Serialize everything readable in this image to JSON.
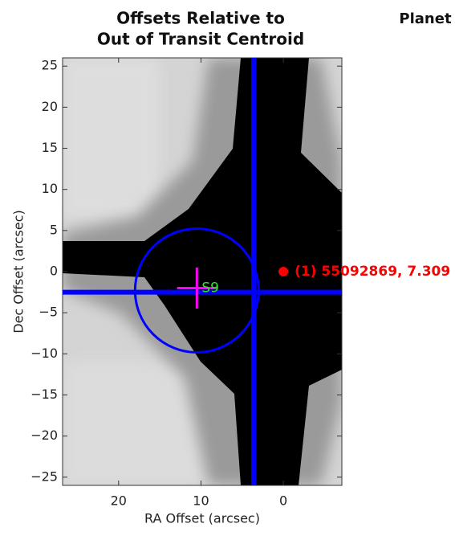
{
  "chart_data": {
    "type": "centroid-offsets",
    "title": [
      "Offsets Relative to",
      "Out of Transit Centroid"
    ],
    "annotation": "Planet",
    "x_label": "RA Offset (arcsec)",
    "y_label": "Dec Offset (arcsec)",
    "xlim": [
      26.8,
      -7.1
    ],
    "ylim": [
      -26,
      26
    ],
    "xticks": [
      20,
      10,
      0
    ],
    "yticks": [
      {
        "value": 25,
        "label": "25"
      },
      {
        "value": 20,
        "label": "20"
      },
      {
        "value": 15,
        "label": "15"
      },
      {
        "value": 10,
        "label": "10"
      },
      {
        "value": 5,
        "label": "5"
      },
      {
        "value": 0,
        "label": "0"
      },
      {
        "value": -5,
        "label": "−5"
      },
      {
        "value": -10,
        "label": "−10"
      },
      {
        "value": -15,
        "label": "−15"
      },
      {
        "value": -20,
        "label": "−20"
      },
      {
        "value": -25,
        "label": "−25"
      }
    ],
    "out_of_transit_centroid": {
      "x": 3.6,
      "y": -2.5,
      "color": "#0000ff"
    },
    "uncertainty_circle": {
      "x": 10.5,
      "y": -2.3,
      "radius": 7.5,
      "color": "#0000ff"
    },
    "in_transit_centroid": {
      "label": "S9",
      "x": 10.5,
      "y": -2,
      "x_err": 2.4,
      "y_err": 2.5,
      "color": "#ff00ff",
      "label_color": "#33dd33"
    },
    "source": {
      "label": "(1) 55092869, 7.309",
      "x": 0,
      "y": 0,
      "color": "#ff0000"
    }
  }
}
